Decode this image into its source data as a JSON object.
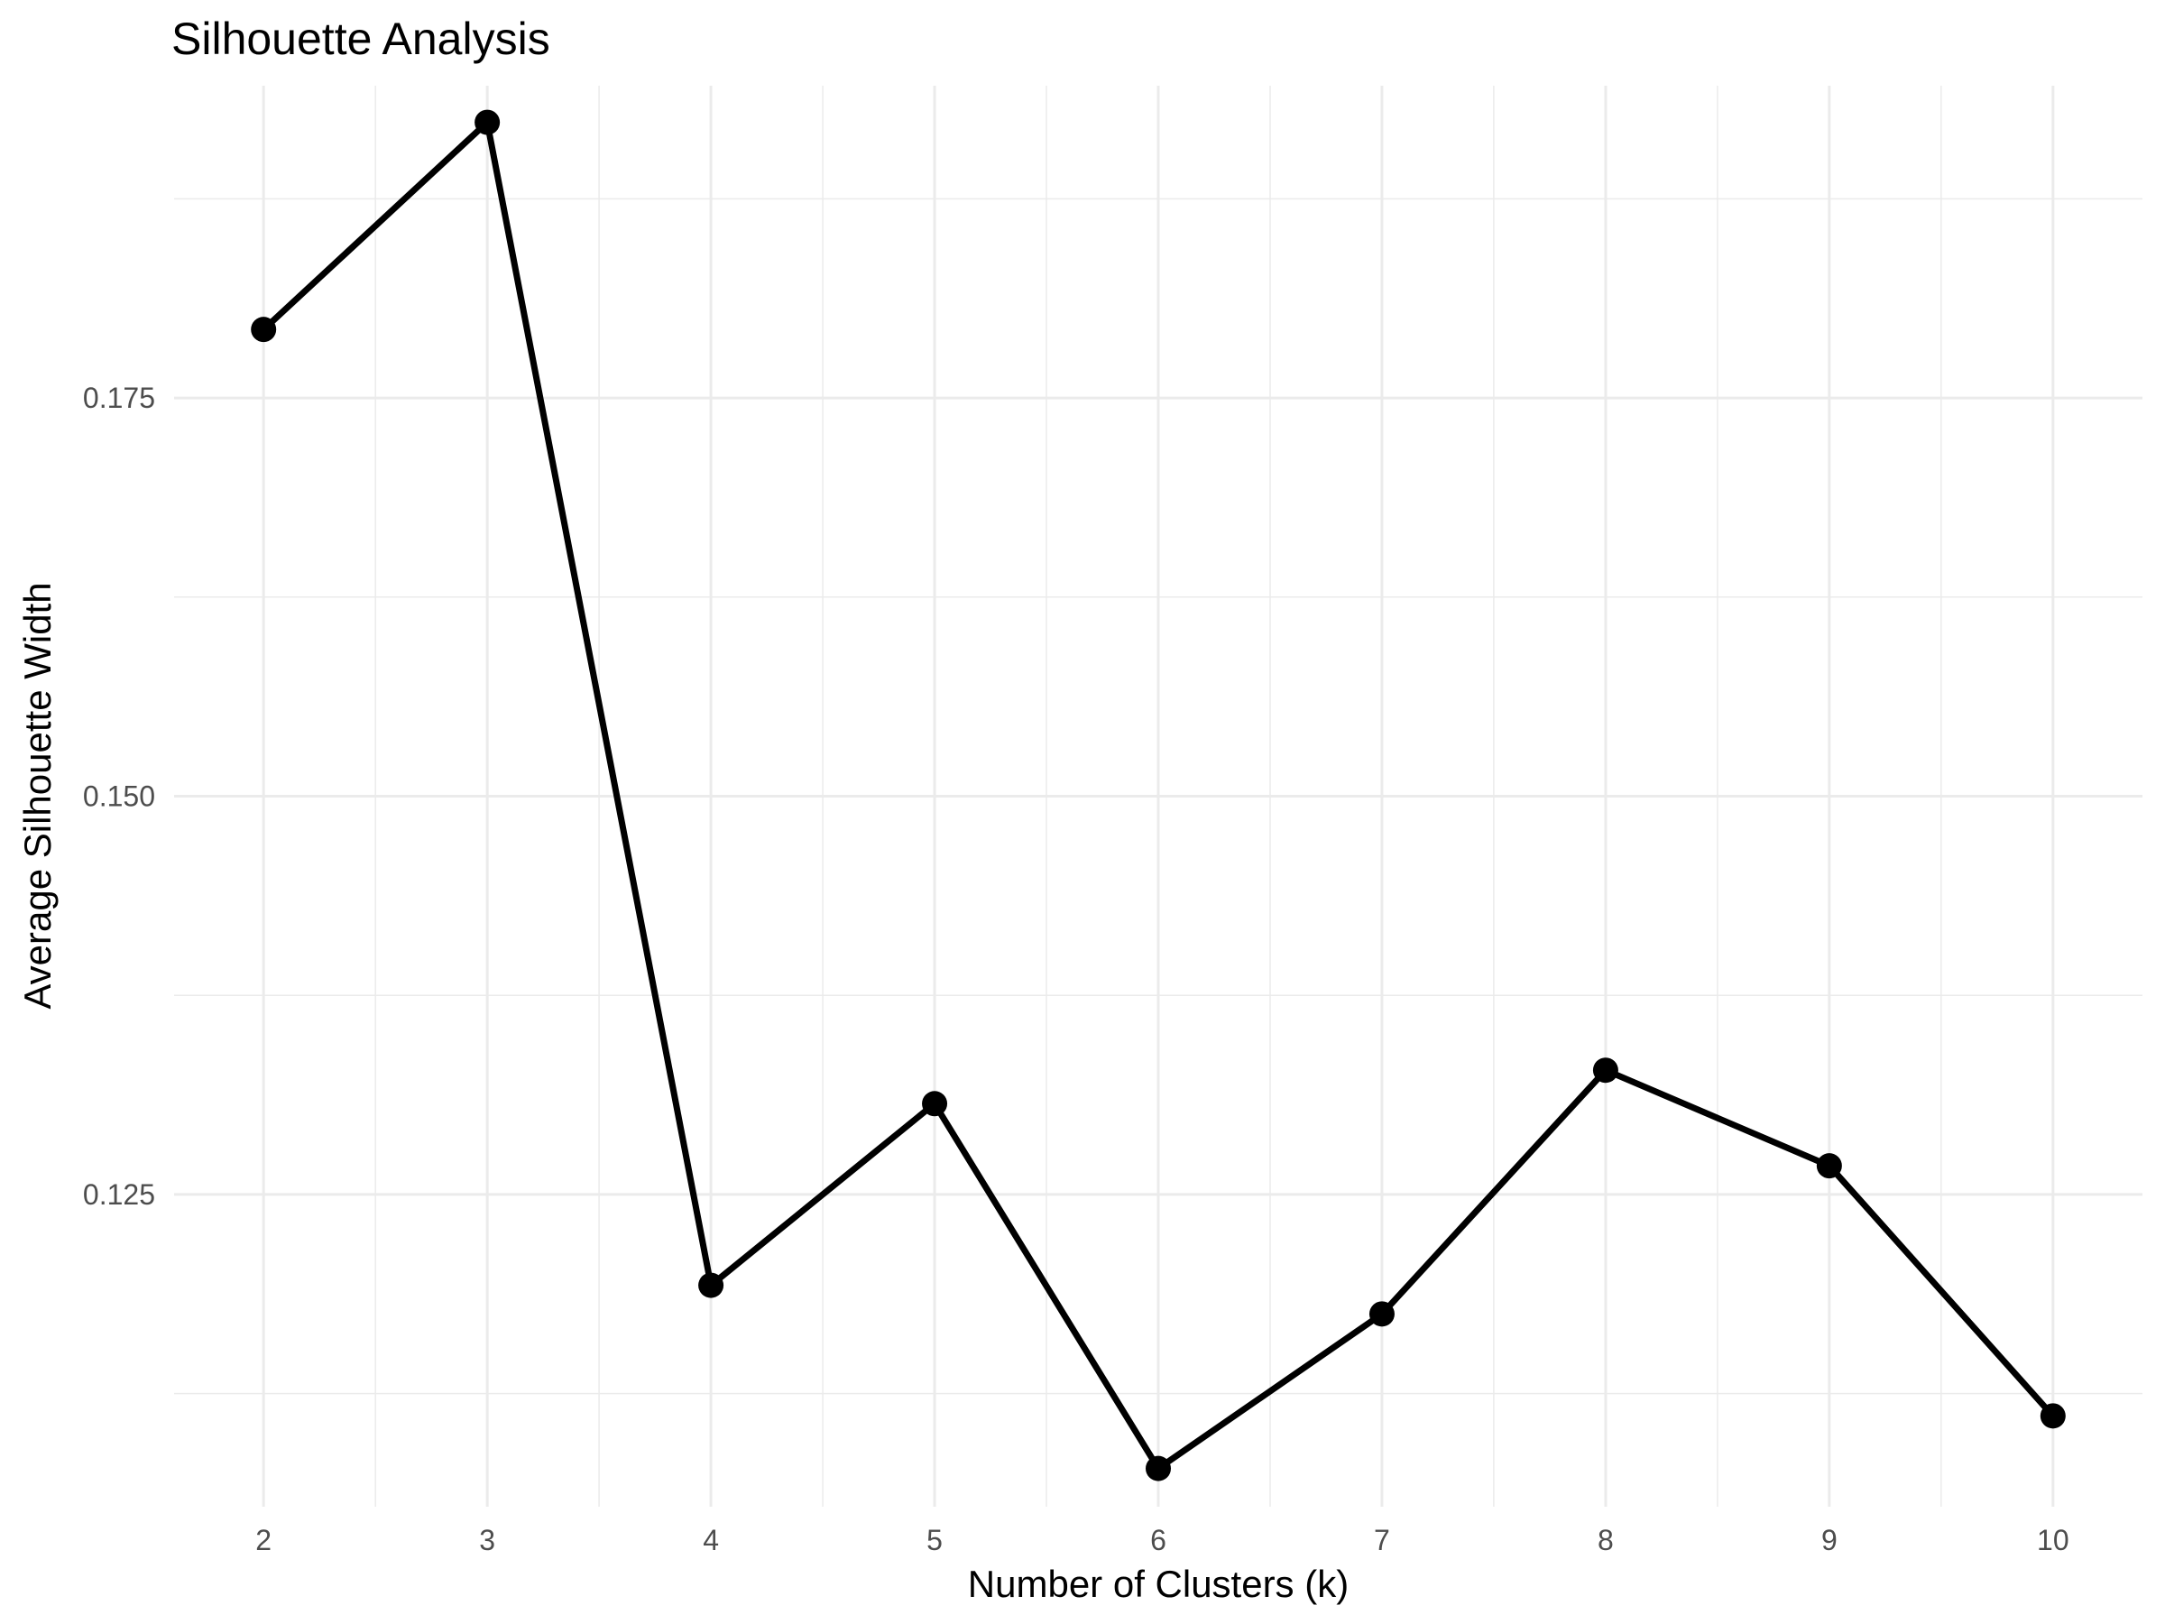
{
  "chart_data": {
    "type": "line",
    "title": "Silhouette Analysis",
    "xlabel": "Number of Clusters (k)",
    "ylabel": "Average Silhouette Width",
    "x": [
      2,
      3,
      4,
      5,
      6,
      7,
      8,
      9,
      10
    ],
    "series": [
      {
        "values": [
          0.1793,
          0.1923,
          0.1193,
          0.1307,
          0.1078,
          0.1175,
          0.1328,
          0.1268,
          0.1111
        ]
      }
    ],
    "xlim": [
      1.6,
      10.4
    ],
    "ylim": [
      0.1054,
      0.1946
    ],
    "x_ticks": [
      2,
      3,
      4,
      5,
      6,
      7,
      8,
      9,
      10
    ],
    "y_ticks": [
      0.125,
      0.15,
      0.175
    ],
    "y_tick_labels": [
      "0.125",
      "0.150",
      "0.175"
    ],
    "y_minor_ticks": [
      0.1125,
      0.1375,
      0.1625,
      0.1875
    ],
    "x_minor_ticks": [
      2.5,
      3.5,
      4.5,
      5.5,
      6.5,
      7.5,
      8.5,
      9.5
    ],
    "grid": true,
    "legend": "none",
    "colors": {
      "line": "#000000",
      "points": "#000000",
      "grid": "#ebebeb",
      "tick_text": "#4d4d4d",
      "background": "#ffffff"
    }
  }
}
